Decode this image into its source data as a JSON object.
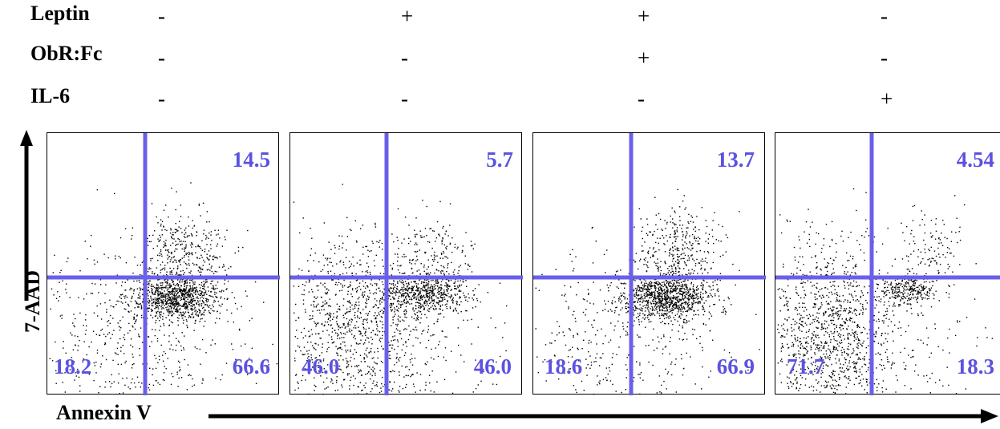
{
  "row_labels": {
    "leptin": "Leptin",
    "obr": "ObR:Fc",
    "il6": "IL-6"
  },
  "conditions": [
    {
      "leptin": "-",
      "obr": "-",
      "il6": "-"
    },
    {
      "leptin": "+",
      "obr": "-",
      "il6": "-"
    },
    {
      "leptin": "+",
      "obr": "+",
      "il6": "-"
    },
    {
      "leptin": "-",
      "obr": "-",
      "il6": "+"
    }
  ],
  "axes": {
    "y_label": "7-AAD",
    "x_label": "Annexin V"
  },
  "colors": {
    "gate": "#6a60e8",
    "quadrant_text": "#5b52e0",
    "dots": "#000000"
  },
  "chart_data": {
    "type": "scatter",
    "panels": [
      {
        "upper_right": "14.5",
        "lower_left": "18.2",
        "lower_right": "66.6"
      },
      {
        "upper_right": "5.7",
        "lower_left": "46.0",
        "lower_right": "46.0"
      },
      {
        "upper_right": "13.7",
        "lower_left": "18.6",
        "lower_right": "66.9"
      },
      {
        "upper_right": "4.54",
        "lower_left": "71.7",
        "lower_right": "18.3"
      }
    ]
  }
}
